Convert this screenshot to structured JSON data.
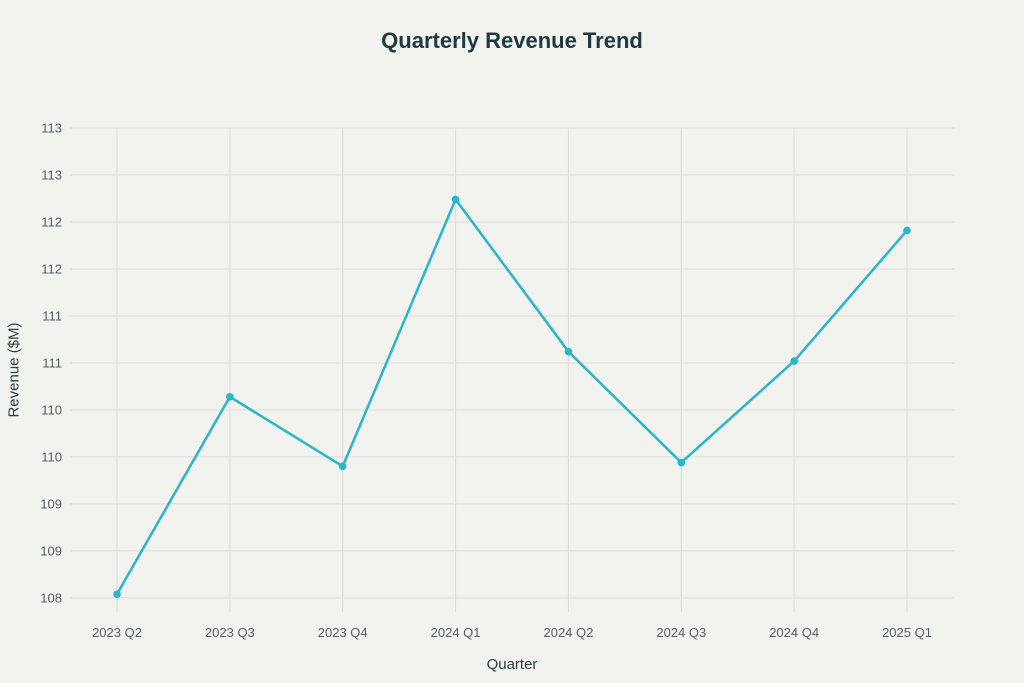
{
  "chart_data": {
    "type": "line",
    "title": "Quarterly Revenue Trend",
    "xlabel": "Quarter",
    "ylabel": "Revenue ($M)",
    "categories": [
      "2023 Q2",
      "2023 Q3",
      "2023 Q4",
      "2024 Q1",
      "2024 Q2",
      "2024 Q3",
      "2024 Q4",
      "2025 Q1"
    ],
    "series": [
      {
        "values": [
          108.04,
          110.14,
          109.4,
          112.24,
          110.62,
          109.44,
          110.52,
          111.91
        ]
      }
    ],
    "ylim": [
      107.85,
      113.0
    ],
    "y_ticks": [
      108.0,
      108.5,
      109.0,
      109.5,
      110.0,
      110.5,
      111.0,
      111.5,
      112.0,
      112.5,
      113.0
    ],
    "y_tick_labels": [
      "108",
      "109",
      "109",
      "110",
      "110",
      "111",
      "111",
      "112",
      "112",
      "113",
      "113"
    ],
    "grid": true,
    "line_color": "#29b6c8"
  }
}
